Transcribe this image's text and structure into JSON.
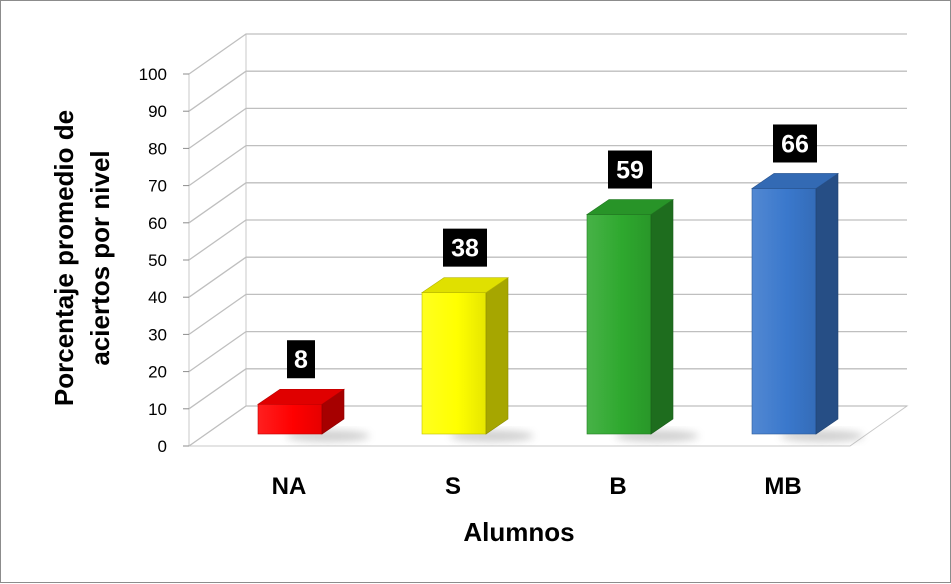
{
  "chart_data": {
    "type": "bar",
    "categories": [
      "NA",
      "S",
      "B",
      "MB"
    ],
    "values": [
      8,
      38,
      59,
      66
    ],
    "colors": [
      "#ff0000",
      "#ffff00",
      "#2ea82e",
      "#3a78cc"
    ],
    "title": "",
    "xlabel": "Alumnos",
    "ylabel_lines": [
      "Porcentaje promedio de",
      "aciertos por nivel"
    ],
    "ylim": [
      0,
      100
    ],
    "yticks": [
      0,
      10,
      20,
      30,
      40,
      50,
      60,
      70,
      80,
      90,
      100
    ],
    "grid": true,
    "legend": "none",
    "style": "3d-column"
  }
}
